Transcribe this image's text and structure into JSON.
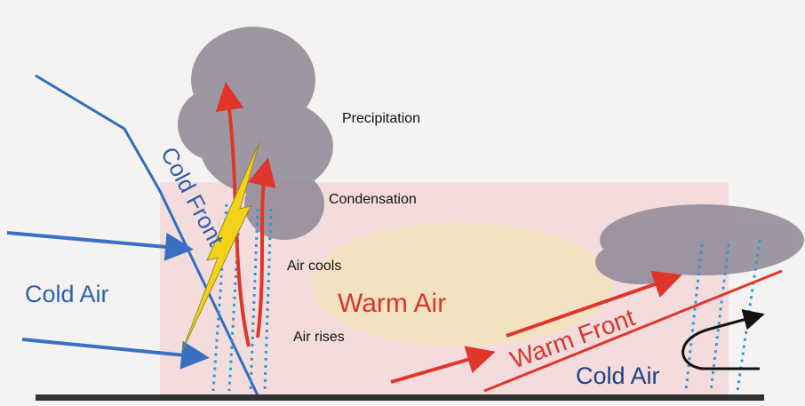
{
  "labels": {
    "cold_front": "Cold Front",
    "precipitation": "Precipitation",
    "condensation": "Condensation",
    "air_cools": "Air cools",
    "cold_air_left": "Cold Air",
    "warm_air": "Warm Air",
    "air_rises": "Air rises",
    "warm_front": "Warm Front",
    "cold_air_right": "Cold Air"
  }
}
